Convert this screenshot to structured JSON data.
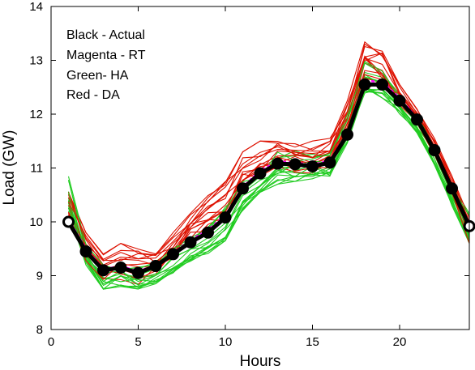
{
  "chart_data": {
    "type": "line",
    "title": "",
    "xlabel": "Hours",
    "ylabel": "Load (GW)",
    "xlim": [
      0,
      24
    ],
    "ylim": [
      8,
      14
    ],
    "xticks": [
      "0",
      "5",
      "10",
      "15",
      "20"
    ],
    "yticks": [
      "8",
      "9",
      "10",
      "11",
      "12",
      "13",
      "14"
    ],
    "grid": false,
    "legend_position": "top-left",
    "legend": [
      {
        "label": "Black - Actual",
        "color": "#000000"
      },
      {
        "label": "Magenta  - RT",
        "color": "#ff00ff"
      },
      {
        "label": "Green- HA",
        "color": "#22cc22"
      },
      {
        "label": "Red   - DA",
        "color": "#dd1100"
      }
    ],
    "x": [
      1,
      2,
      3,
      4,
      5,
      6,
      7,
      8,
      9,
      10,
      11,
      12,
      13,
      14,
      15,
      16,
      17,
      18,
      19,
      20,
      21,
      22,
      23,
      24
    ],
    "series": [
      {
        "name": "Actual",
        "color": "#000000",
        "values": [
          10.0,
          9.45,
          9.1,
          9.15,
          9.05,
          9.18,
          9.4,
          9.62,
          9.8,
          10.08,
          10.62,
          10.9,
          11.08,
          11.07,
          11.03,
          11.1,
          11.62,
          12.55,
          12.55,
          12.25,
          11.9,
          11.33,
          10.62,
          9.92
        ]
      },
      {
        "name": "RT",
        "color": "#ff00ff",
        "values": [
          10.05,
          9.5,
          9.12,
          9.18,
          9.08,
          9.2,
          9.42,
          9.66,
          9.85,
          10.12,
          10.65,
          10.95,
          11.12,
          11.1,
          11.06,
          11.14,
          11.66,
          12.62,
          12.6,
          12.3,
          11.93,
          11.36,
          10.66,
          9.95
        ]
      },
      {
        "name": "HA",
        "color": "#22cc22",
        "band": [
          [
            10.9,
            9.6,
            9.25,
            9.3,
            9.2,
            9.35,
            9.5,
            9.7,
            9.9,
            10.3,
            10.75,
            10.95,
            11.35,
            11.4,
            11.3,
            11.35,
            12.05,
            13.0,
            12.9,
            12.4,
            12.0,
            11.45,
            10.75,
            10.2
          ],
          [
            10.2,
            9.2,
            8.75,
            8.8,
            8.75,
            8.85,
            9.05,
            9.25,
            9.4,
            9.65,
            10.2,
            10.55,
            10.7,
            10.75,
            10.8,
            10.85,
            11.45,
            12.35,
            12.3,
            12.0,
            11.65,
            11.05,
            10.3,
            9.6
          ]
        ]
      },
      {
        "name": "DA",
        "color": "#dd1100",
        "band": [
          [
            10.55,
            9.8,
            9.4,
            9.6,
            9.5,
            9.55,
            9.8,
            10.2,
            10.5,
            10.8,
            11.3,
            11.5,
            11.55,
            11.45,
            11.5,
            11.55,
            12.25,
            13.4,
            13.25,
            12.55,
            12.1,
            11.55,
            10.85,
            10.1
          ],
          [
            10.0,
            9.25,
            8.85,
            8.9,
            8.8,
            8.95,
            9.2,
            9.5,
            9.7,
            9.95,
            10.5,
            10.75,
            10.9,
            10.9,
            10.85,
            10.95,
            11.55,
            12.4,
            12.45,
            12.1,
            11.8,
            11.2,
            10.45,
            9.45
          ]
        ]
      }
    ]
  }
}
